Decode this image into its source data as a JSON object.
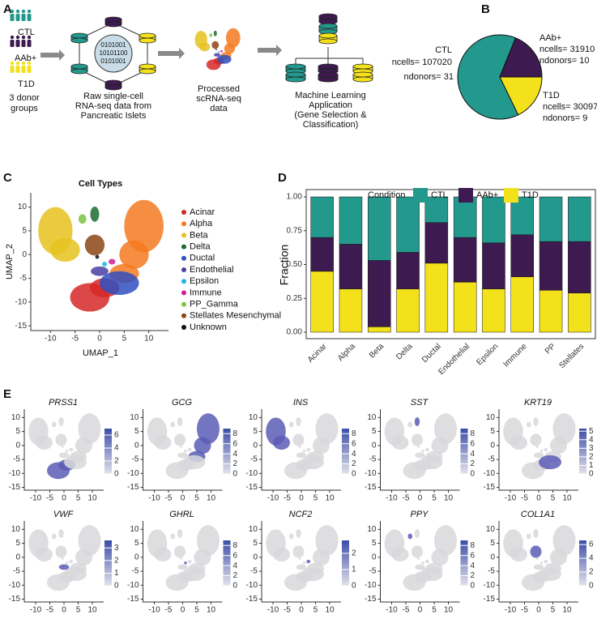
{
  "panel_labels": [
    "A",
    "B",
    "C",
    "D",
    "E"
  ],
  "diagram": {
    "groups": [
      "CTL",
      "AAb+",
      "T1D"
    ],
    "groups_caption": [
      "3 donor",
      "groups"
    ],
    "binary": [
      "0101001",
      "10101100",
      "0101001"
    ],
    "steps": [
      [
        "Raw single-cell",
        "RNA-seq data from",
        "Pancreatic Islets"
      ],
      [
        "Processed",
        "scRNA-seq",
        "data"
      ],
      [
        "Machine Learning",
        "Application",
        "(Gene Selection &",
        "Classification)"
      ]
    ]
  },
  "chart_data": [
    {
      "type": "pie",
      "categories": [
        "CTL",
        "AAb+",
        "T1D"
      ],
      "values": [
        107020,
        31910,
        30097
      ],
      "value_labels": [
        "ncells= 107020",
        "ncells= 31910",
        "ncells= 30097"
      ],
      "donor_labels": [
        "ndonors= 31",
        "ndonors= 10",
        "ndonors= 9"
      ],
      "colors": [
        "#23998e",
        "#3d1a4f",
        "#f3e11c"
      ]
    },
    {
      "type": "umap",
      "title": "Cell Types",
      "xlabel": "UMAP_1",
      "ylabel": "UMAP_2",
      "xlim": [
        -14,
        14
      ],
      "ylim": [
        -16,
        13
      ],
      "xticks": [
        -10,
        -5,
        0,
        5,
        10
      ],
      "yticks": [
        10,
        5,
        0,
        -5,
        -10,
        -15
      ],
      "series": [
        {
          "name": "Acinar",
          "color": "#d62728"
        },
        {
          "name": "Alpha",
          "color": "#f47a20"
        },
        {
          "name": "Beta",
          "color": "#e6c21e"
        },
        {
          "name": "Delta",
          "color": "#1b6b2f"
        },
        {
          "name": "Ductal",
          "color": "#2f4fbf"
        },
        {
          "name": "Endothelial",
          "color": "#4b3fa0"
        },
        {
          "name": "Epsilon",
          "color": "#1fb5e6"
        },
        {
          "name": "Immune",
          "color": "#cf1f9a"
        },
        {
          "name": "PP_Gamma",
          "color": "#7cc242"
        },
        {
          "name": "Stellates Mesenchymal",
          "color": "#8b4513"
        },
        {
          "name": "Unknown",
          "color": "#111111"
        }
      ]
    },
    {
      "type": "stacked_bar",
      "ylabel": "Fraction",
      "legend_title": "Condition",
      "categories": [
        "Acinar",
        "Alpha",
        "Beta",
        "Delta",
        "Ductal",
        "Endothelial",
        "Epsilon",
        "Immune",
        "PP",
        "Stellates"
      ],
      "ylim": [
        0,
        1.05
      ],
      "yticks": [
        {
          "value": 0,
          "label": "0.00"
        },
        {
          "value": 0.25,
          "label": "0.25"
        },
        {
          "value": 0.5,
          "label": "0.50"
        },
        {
          "value": 0.75,
          "label": "0.75"
        },
        {
          "value": 1,
          "label": "1.00"
        }
      ],
      "series": [
        {
          "name": "T1D",
          "color": "#f3e11c",
          "values": [
            0.45,
            0.32,
            0.04,
            0.32,
            0.51,
            0.37,
            0.32,
            0.41,
            0.31,
            0.29
          ]
        },
        {
          "name": "AAb+",
          "color": "#3d1a4f",
          "values": [
            0.25,
            0.33,
            0.49,
            0.27,
            0.3,
            0.33,
            0.34,
            0.31,
            0.36,
            0.38
          ]
        },
        {
          "name": "CTL",
          "color": "#23998e",
          "values": [
            0.3,
            0.35,
            0.47,
            0.41,
            0.19,
            0.3,
            0.34,
            0.28,
            0.33,
            0.33
          ]
        }
      ],
      "legend_order": [
        2,
        1,
        0
      ]
    },
    {
      "type": "feature",
      "title": "PRSS1",
      "clim": [
        0,
        7
      ],
      "cticks": [
        0,
        2,
        4,
        6
      ],
      "xlim": [
        -14,
        14
      ],
      "ylim": [
        -16,
        13
      ],
      "xticks": [
        -10,
        -5,
        0,
        5,
        10
      ],
      "yticks": [
        10,
        5,
        0,
        -5,
        -10,
        -15
      ]
    },
    {
      "type": "feature",
      "title": "GCG",
      "clim": [
        0,
        9
      ],
      "cticks": [
        0,
        2,
        4,
        6,
        8
      ],
      "xlim": [
        -14,
        14
      ],
      "ylim": [
        -16,
        13
      ],
      "xticks": [
        -10,
        -5,
        0,
        5,
        10
      ],
      "yticks": [
        10,
        5,
        0,
        -5,
        -10,
        -15
      ]
    },
    {
      "type": "feature",
      "title": "INS",
      "clim": [
        0,
        9
      ],
      "cticks": [
        0,
        2,
        4,
        6,
        8
      ],
      "xlim": [
        -14,
        14
      ],
      "ylim": [
        -16,
        13
      ],
      "xticks": [
        -10,
        -5,
        0,
        5,
        10
      ],
      "yticks": [
        10,
        5,
        0,
        -5,
        -10,
        -15
      ]
    },
    {
      "type": "feature",
      "title": "SST",
      "clim": [
        0,
        9
      ],
      "cticks": [
        0,
        2,
        4,
        6,
        8
      ],
      "xlim": [
        -14,
        14
      ],
      "ylim": [
        -16,
        13
      ],
      "xticks": [
        -10,
        -5,
        0,
        5,
        10
      ],
      "yticks": [
        10,
        5,
        0,
        -5,
        -10,
        -15
      ]
    },
    {
      "type": "feature",
      "title": "KRT19",
      "clim": [
        0,
        5.3
      ],
      "cticks": [
        0,
        1,
        2,
        3,
        4,
        5
      ],
      "xlim": [
        -14,
        14
      ],
      "ylim": [
        -16,
        13
      ],
      "xticks": [
        -10,
        -5,
        0,
        5,
        10
      ],
      "yticks": [
        10,
        5,
        0,
        -5,
        -10,
        -15
      ]
    },
    {
      "type": "feature",
      "title": "VWF",
      "clim": [
        0,
        3.6
      ],
      "cticks": [
        0,
        1,
        2,
        3
      ],
      "xlim": [
        -14,
        14
      ],
      "ylim": [
        -16,
        13
      ],
      "xticks": [
        -10,
        -5,
        0,
        5,
        10
      ],
      "yticks": [
        10,
        5,
        0,
        -5,
        -10,
        -15
      ]
    },
    {
      "type": "feature",
      "title": "GHRL",
      "clim": [
        0,
        9
      ],
      "cticks": [
        0,
        2,
        4,
        6,
        8
      ],
      "xlim": [
        -14,
        14
      ],
      "ylim": [
        -16,
        13
      ],
      "xticks": [
        -10,
        -5,
        0,
        5,
        10
      ],
      "yticks": [
        10,
        5,
        0,
        -5,
        -10,
        -15
      ]
    },
    {
      "type": "feature",
      "title": "NCF2",
      "clim": [
        0,
        2.8
      ],
      "cticks": [
        0,
        1,
        2
      ],
      "xlim": [
        -14,
        14
      ],
      "ylim": [
        -16,
        13
      ],
      "xticks": [
        -10,
        -5,
        0,
        5,
        10
      ],
      "yticks": [
        10,
        5,
        0,
        -5,
        -10,
        -15
      ]
    },
    {
      "type": "feature",
      "title": "PPY",
      "clim": [
        0,
        9
      ],
      "cticks": [
        0,
        2,
        4,
        6,
        8
      ],
      "xlim": [
        -14,
        14
      ],
      "ylim": [
        -16,
        13
      ],
      "xticks": [
        -10,
        -5,
        0,
        5,
        10
      ],
      "yticks": [
        10,
        5,
        0,
        -5,
        -10,
        -15
      ]
    },
    {
      "type": "feature",
      "title": "COL1A1",
      "clim": [
        0,
        6.6
      ],
      "cticks": [
        0,
        2,
        4,
        6
      ],
      "xlim": [
        -14,
        14
      ],
      "ylim": [
        -16,
        13
      ],
      "xticks": [
        -10,
        -5,
        0,
        5,
        10
      ],
      "yticks": [
        10,
        5,
        0,
        -5,
        -10,
        -15
      ]
    }
  ]
}
